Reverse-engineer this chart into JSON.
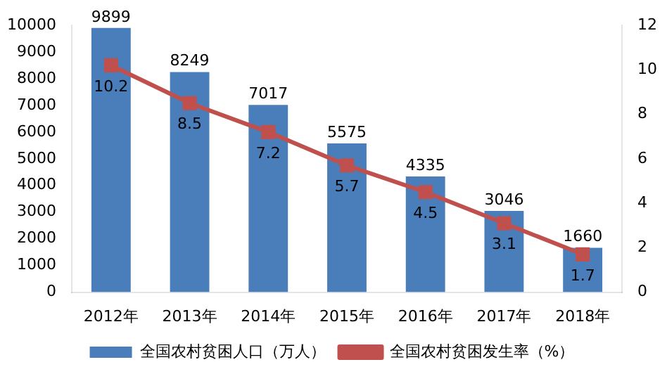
{
  "chart_data": {
    "type": "bar",
    "categories": [
      "2012年",
      "2013年",
      "2014年",
      "2015年",
      "2016年",
      "2017年",
      "2018年"
    ],
    "series": [
      {
        "name": "全国农村贫困人口（万人）",
        "color": "#4a7ebb",
        "values": [
          9899,
          8249,
          7017,
          5575,
          4335,
          3046,
          1660
        ]
      },
      {
        "name": "全国农村贫困发生率（%）",
        "type": "line",
        "axis": "y2",
        "color": "#c0504d",
        "marker": "square",
        "values": [
          10.2,
          8.5,
          7.2,
          5.7,
          4.5,
          3.1,
          1.7
        ]
      }
    ],
    "ylim": [
      0,
      10000
    ],
    "yticks": [
      0,
      1000,
      2000,
      3000,
      4000,
      5000,
      6000,
      7000,
      8000,
      9000,
      10000
    ],
    "y2lim": [
      0,
      12
    ],
    "y2ticks": [
      0,
      2,
      4,
      6,
      8,
      10,
      12
    ],
    "data_labels": true,
    "grid": false,
    "legend": "bottom"
  }
}
